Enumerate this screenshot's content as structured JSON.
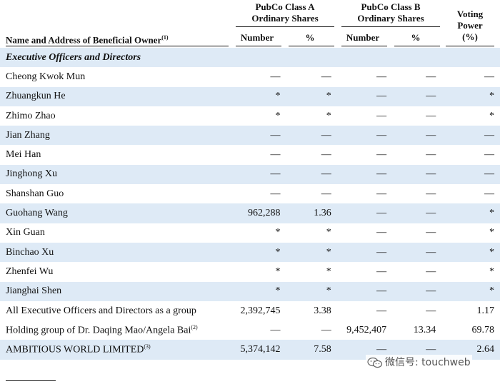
{
  "header": {
    "col_name": "Name and Address of Beneficial Owner",
    "col_name_sup": "(1)",
    "group_a_line1": "PubCo Class A",
    "group_a_line2": "Ordinary Shares",
    "group_b_line1": "PubCo Class B",
    "group_b_line2": "Ordinary Shares",
    "voting_line1": "Voting",
    "voting_line2": "Power",
    "voting_line3": "(%)",
    "number_label": "Number",
    "pct_label": "%"
  },
  "section_title": "Executive Officers and Directors",
  "rows": [
    {
      "name": "Cheong Kwok Mun",
      "sup": "",
      "a_num": "—",
      "a_pct": "—",
      "b_num": "—",
      "b_pct": "—",
      "vote": "—",
      "shaded": false
    },
    {
      "name": "Zhuangkun He",
      "sup": "",
      "a_num": "*",
      "a_pct": "*",
      "b_num": "—",
      "b_pct": "—",
      "vote": "*",
      "shaded": true
    },
    {
      "name": "Zhimo Zhao",
      "sup": "",
      "a_num": "*",
      "a_pct": "*",
      "b_num": "—",
      "b_pct": "—",
      "vote": "*",
      "shaded": false
    },
    {
      "name": "Jian Zhang",
      "sup": "",
      "a_num": "—",
      "a_pct": "—",
      "b_num": "—",
      "b_pct": "—",
      "vote": "—",
      "shaded": true
    },
    {
      "name": "Mei Han",
      "sup": "",
      "a_num": "—",
      "a_pct": "—",
      "b_num": "—",
      "b_pct": "—",
      "vote": "—",
      "shaded": false
    },
    {
      "name": "Jinghong Xu",
      "sup": "",
      "a_num": "—",
      "a_pct": "—",
      "b_num": "—",
      "b_pct": "—",
      "vote": "—",
      "shaded": true
    },
    {
      "name": "Shanshan Guo",
      "sup": "",
      "a_num": "—",
      "a_pct": "—",
      "b_num": "—",
      "b_pct": "—",
      "vote": "—",
      "shaded": false
    },
    {
      "name": "Guohang Wang",
      "sup": "",
      "a_num": "962,288",
      "a_pct": "1.36",
      "b_num": "—",
      "b_pct": "—",
      "vote": "*",
      "shaded": true
    },
    {
      "name": "Xin Guan",
      "sup": "",
      "a_num": "*",
      "a_pct": "*",
      "b_num": "—",
      "b_pct": "—",
      "vote": "*",
      "shaded": false
    },
    {
      "name": "Binchao Xu",
      "sup": "",
      "a_num": "*",
      "a_pct": "*",
      "b_num": "—",
      "b_pct": "—",
      "vote": "*",
      "shaded": true
    },
    {
      "name": "Zhenfei Wu",
      "sup": "",
      "a_num": "*",
      "a_pct": "*",
      "b_num": "—",
      "b_pct": "—",
      "vote": "*",
      "shaded": false
    },
    {
      "name": "Jianghai Shen",
      "sup": "",
      "a_num": "*",
      "a_pct": "*",
      "b_num": "—",
      "b_pct": "—",
      "vote": "*",
      "shaded": true
    },
    {
      "name": "All Executive Officers and Directors as a group",
      "sup": "",
      "a_num": "2,392,745",
      "a_pct": "3.38",
      "b_num": "—",
      "b_pct": "—",
      "vote": "1.17",
      "shaded": false
    },
    {
      "name": "Holding group of Dr. Daqing Mao/Angela Bai",
      "sup": "(2)",
      "a_num": "—",
      "a_pct": "—",
      "b_num": "9,452,407",
      "b_pct": "13.34",
      "vote": "69.78",
      "shaded": false
    },
    {
      "name": "AMBITIOUS WORLD LIMITED",
      "sup": "(3)",
      "a_num": "5,374,142",
      "a_pct": "7.58",
      "b_num": "—",
      "b_pct": "—",
      "vote": "2.64",
      "shaded": true
    }
  ],
  "watermark": {
    "text": "微信号: touchweb",
    "icon": "wechat-icon"
  }
}
